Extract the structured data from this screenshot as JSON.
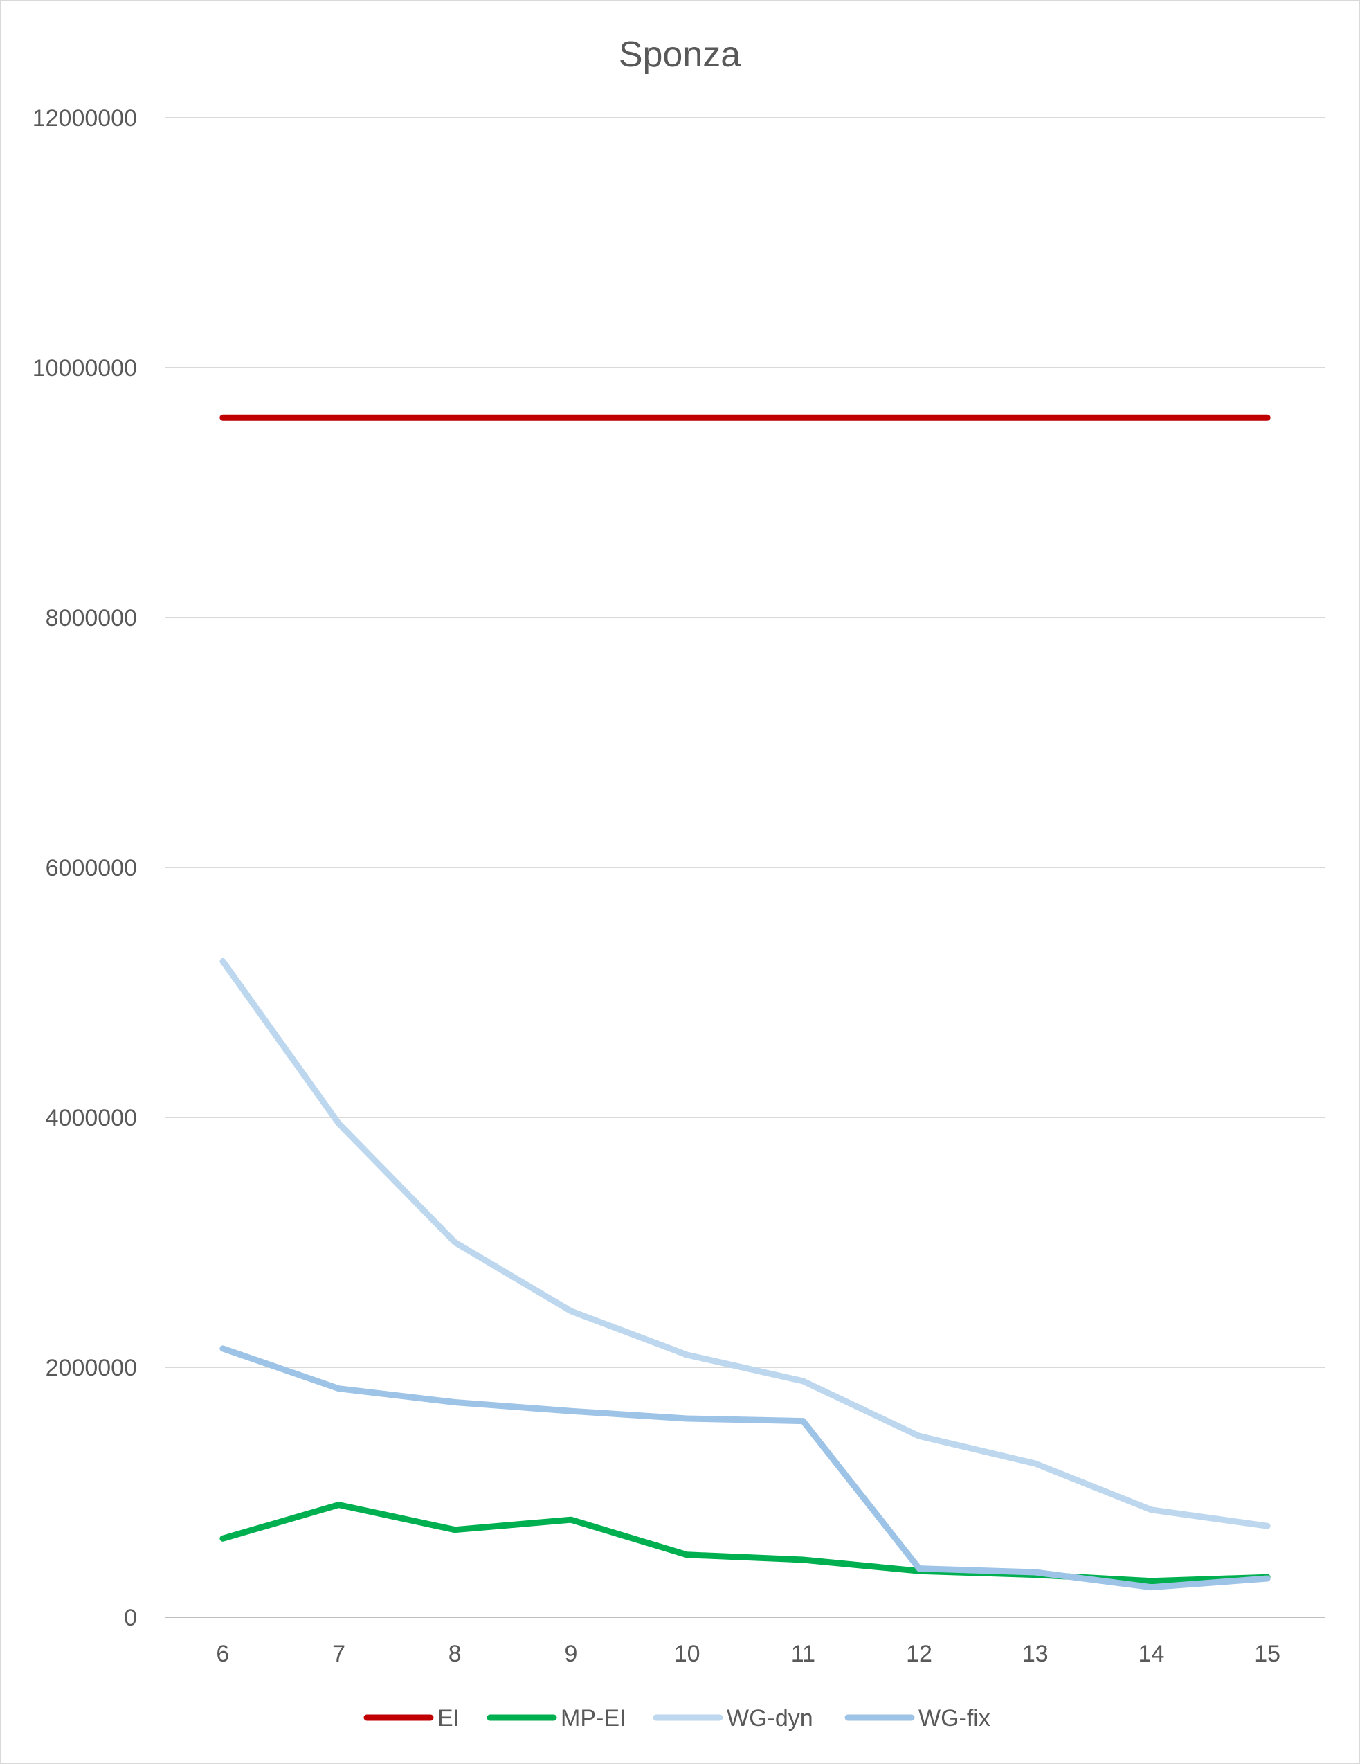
{
  "chart_data": {
    "type": "line",
    "title": "Sponza",
    "xlabel": "",
    "ylabel": "",
    "categories": [
      "6",
      "7",
      "8",
      "9",
      "10",
      "11",
      "12",
      "13",
      "14",
      "15"
    ],
    "ylim": [
      0,
      12000000
    ],
    "yticks": [
      "0",
      "2000000",
      "4000000",
      "6000000",
      "8000000",
      "10000000",
      "12000000"
    ],
    "grid": true,
    "legend_position": "bottom",
    "series": [
      {
        "name": "EI",
        "color": "#c00000",
        "values": [
          9600000,
          9600000,
          9600000,
          9600000,
          9600000,
          9600000,
          9600000,
          9600000,
          9600000,
          9600000
        ]
      },
      {
        "name": "MP-EI",
        "color": "#00b050",
        "values": [
          630000,
          900000,
          700000,
          780000,
          500000,
          460000,
          370000,
          340000,
          290000,
          320000
        ]
      },
      {
        "name": "WG-dyn",
        "color": "#bdd7ee",
        "values": [
          5250000,
          3950000,
          3000000,
          2450000,
          2100000,
          1890000,
          1450000,
          1230000,
          860000,
          730000
        ]
      },
      {
        "name": "WG-fix",
        "color": "#9dc3e6",
        "values": [
          2150000,
          1830000,
          1720000,
          1650000,
          1590000,
          1570000,
          390000,
          360000,
          240000,
          310000
        ]
      }
    ]
  }
}
